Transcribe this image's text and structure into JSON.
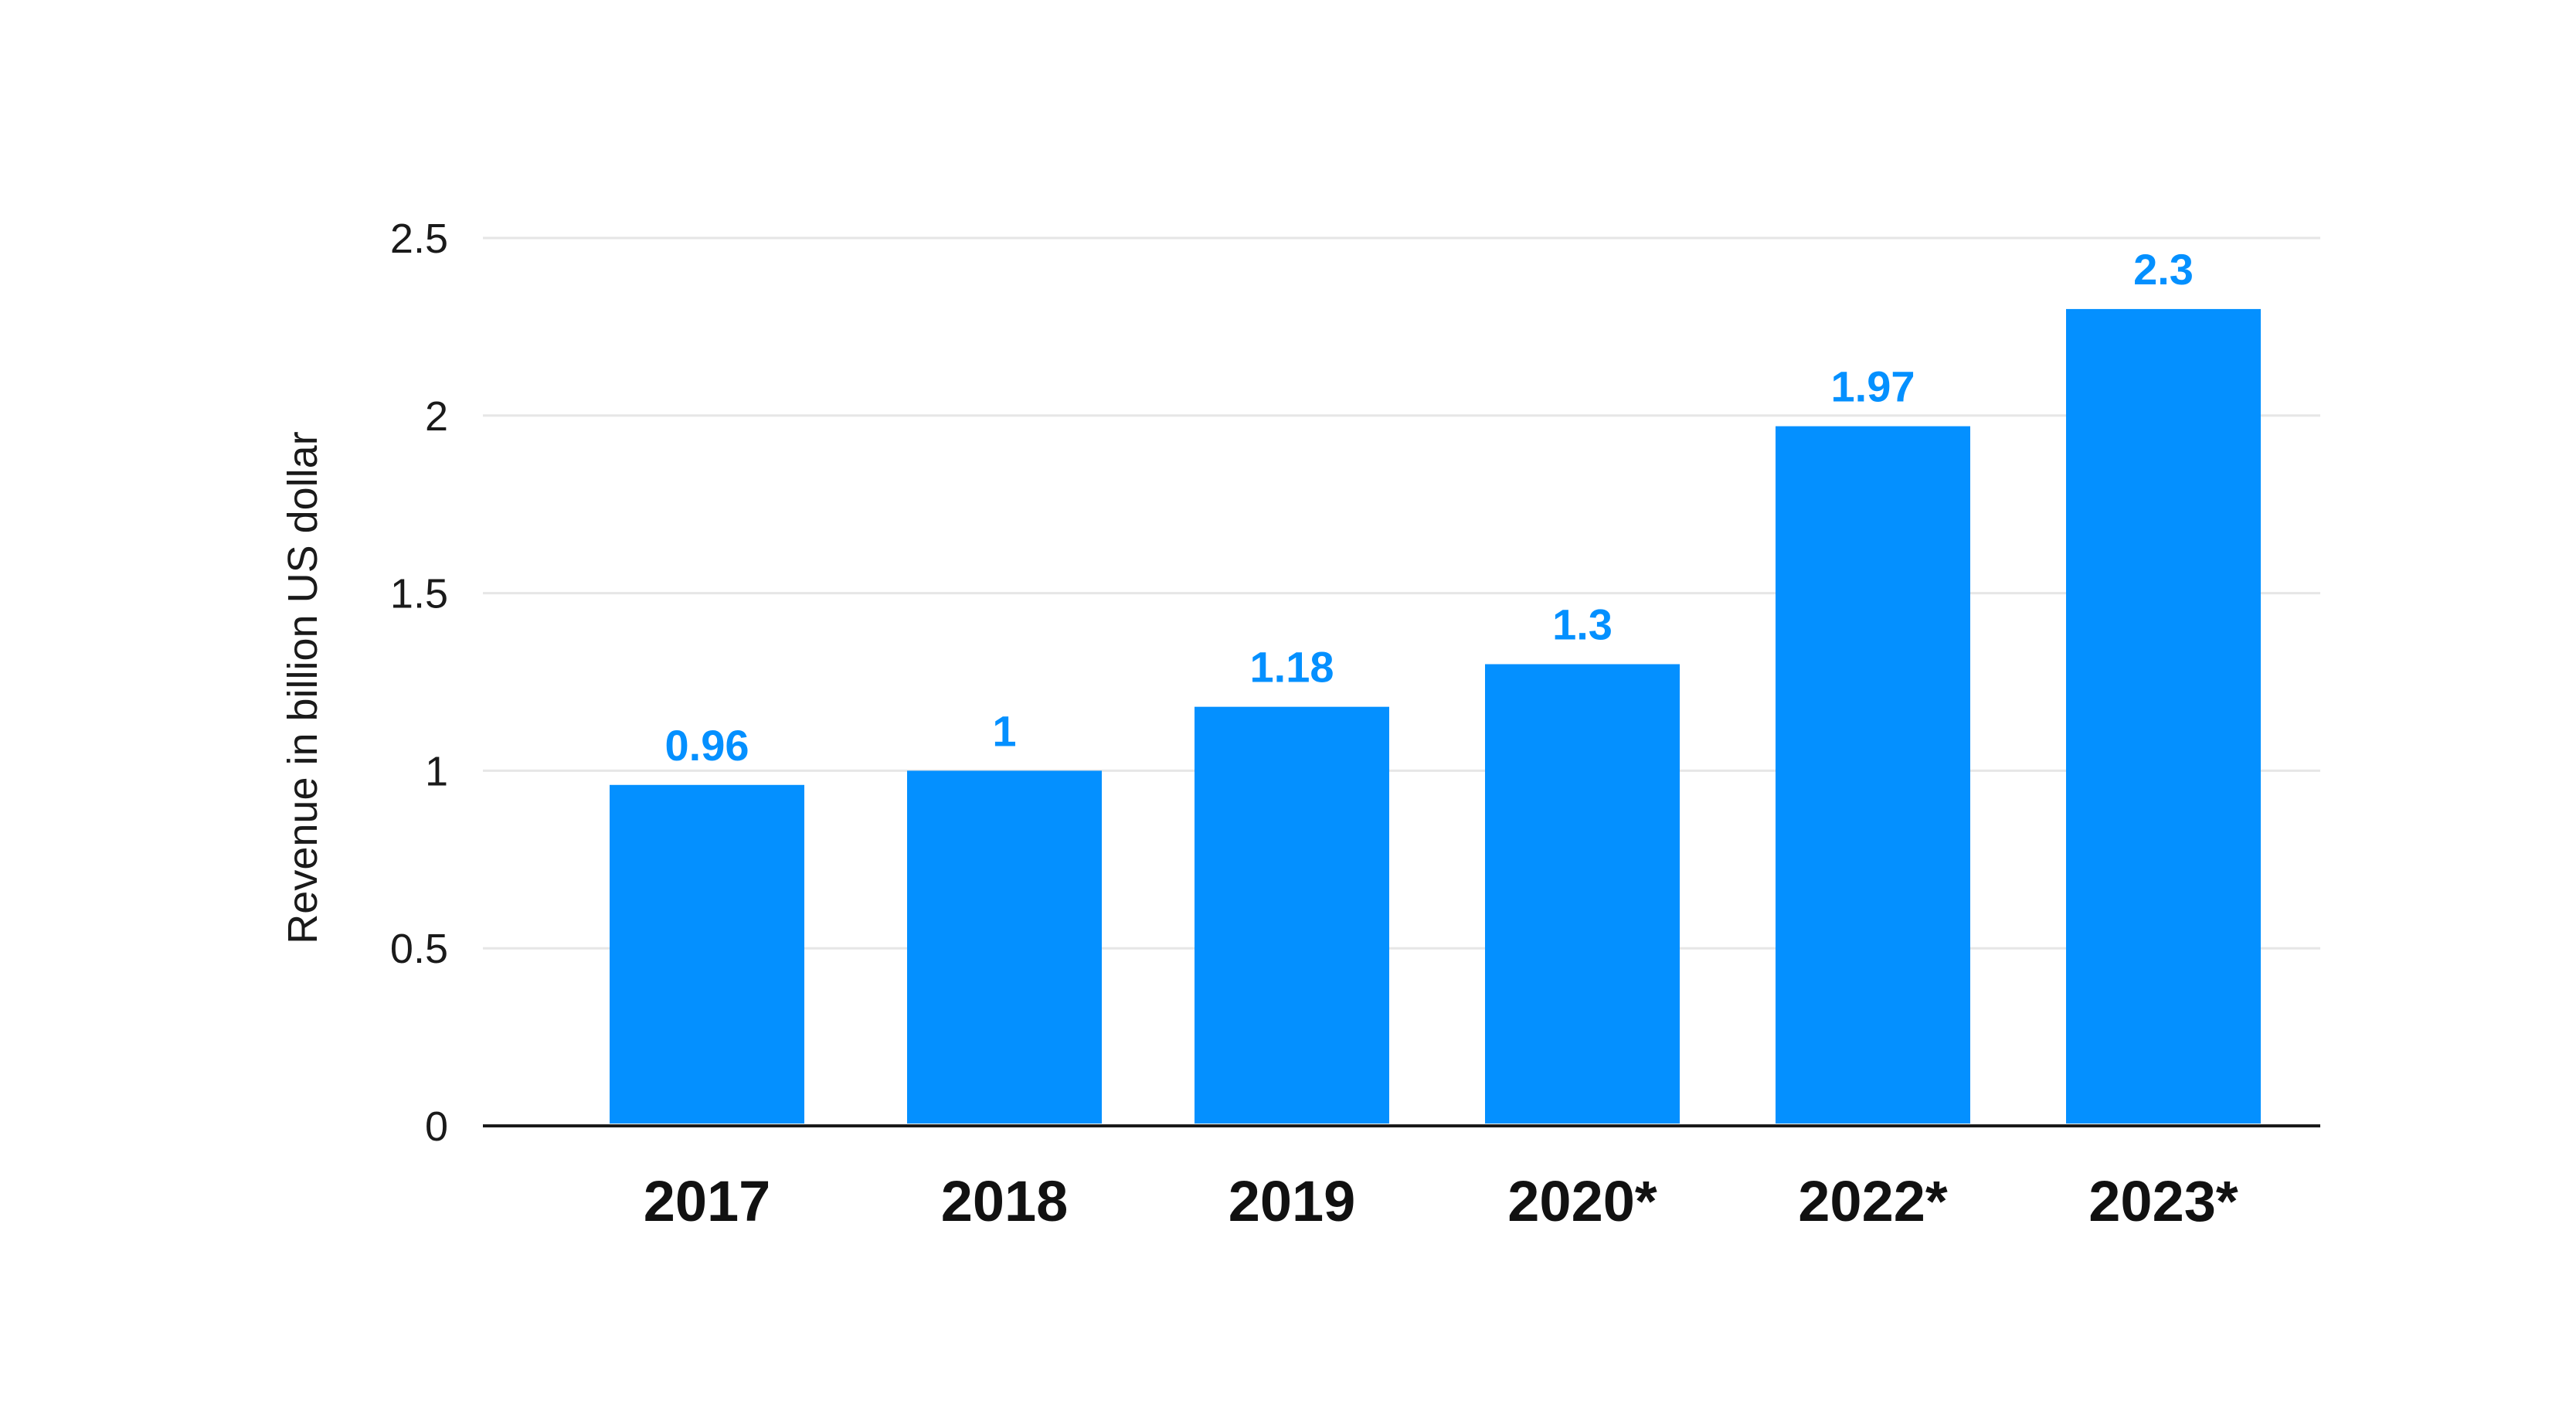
{
  "chart_data": {
    "type": "bar",
    "categories": [
      "2017",
      "2018",
      "2019",
      "2020*",
      "2022*",
      "2023*"
    ],
    "values": [
      0.96,
      1,
      1.18,
      1.3,
      1.97,
      2.3
    ],
    "data_labels": [
      "0.96",
      "1",
      "1.18",
      "1.3",
      "1.97",
      "2.3"
    ],
    "xlabel": "",
    "ylabel": "Revenue in billion US dollar",
    "ylim": [
      0,
      2.5
    ],
    "yticks": [
      0,
      0.5,
      1,
      1.5,
      2,
      2.5
    ],
    "ytick_labels": [
      "0",
      "0.5",
      "1",
      "1.5",
      "2",
      "2.5"
    ],
    "grid": true,
    "bar_color": "#0490FF",
    "label_color": "#0490FF"
  }
}
